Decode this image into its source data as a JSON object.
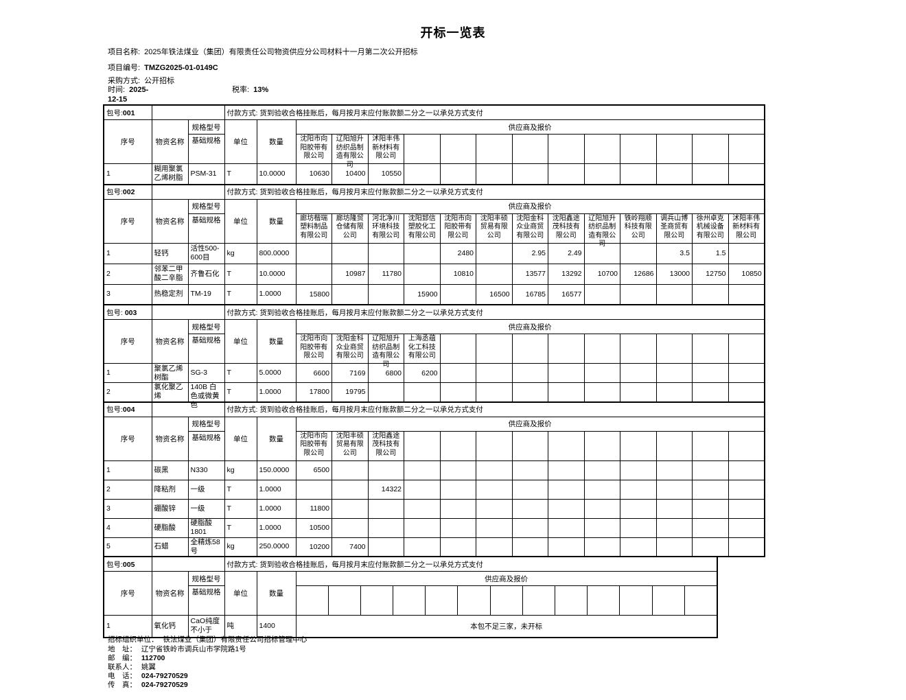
{
  "title": "开标一览表",
  "meta": {
    "project_name_label": "项目名称:",
    "project_name": "2025年铁法煤业（集团）有限责任公司物资供应分公司材料十一月第二次公开招标",
    "project_no_label": "项目编号:",
    "project_no": "TMZG2025-01-0149C",
    "method_label": "采购方式:",
    "method": "公开招标",
    "time_label": "时间:",
    "time_line1": "2025-",
    "time_line2": "12-15",
    "tax_label": "税率:",
    "tax_value": "13%"
  },
  "payment_terms": "付款方式: 货到验收合格挂账后，每月按月末应付账款额二分之一以承兑方式支付",
  "table_headers": {
    "seq": "序号",
    "name": "物资名称",
    "spec_model": "规格型号",
    "base_spec": "基础规格",
    "unit": "单位",
    "qty": "数量",
    "suppliers_quotes": "供应商及报价"
  },
  "sections": [
    {
      "pkg_label": "包号:",
      "pkg_no": "001",
      "suppliers": [
        "沈阳市向阳胶带有限公司",
        "辽阳旭升纺织品制造有限公司",
        "沭阳丰伟新材料有限公司"
      ],
      "rows": [
        {
          "seq": "1",
          "name": "糊用聚氯乙烯树脂",
          "spec": "PSM-31",
          "unit": "T",
          "qty": "10.0000",
          "quotes": [
            "10630",
            "10400",
            "10550"
          ]
        }
      ]
    },
    {
      "pkg_label": "包号:",
      "pkg_no": "002",
      "suppliers": [
        "廊坊楷瑞塑料制品有限公司",
        "廊坊隆贸仓储有限公司",
        "河北净川环境科技有限公司",
        "沈阳郅信塑胶化工有限公司",
        "沈阳市向阳胶带有限公司",
        "沈阳丰硕贸易有限公司",
        "沈阳金科众业商贸有限公司",
        "沈阳鑫途茂科技有限公司",
        "辽阳旭升纺织品制造有限公司",
        "铁岭翔顺科技有限公司",
        "调兵山博圣商贸有限公司",
        "徐州卓克机械设备有限公司",
        "沭阳丰伟新材料有限公司"
      ],
      "rows": [
        {
          "seq": "1",
          "name": "轻钙",
          "spec": "活性500-600目",
          "unit": "kg",
          "qty": "800.0000",
          "quotes": [
            "",
            "",
            "",
            "",
            "2480",
            "",
            "2.95",
            "2.49",
            "",
            "",
            "3.5",
            "1.5",
            ""
          ]
        },
        {
          "seq": "2",
          "name": "邻苯二甲酸二辛脂",
          "spec": "齐鲁石化",
          "unit": "T",
          "qty": "10.0000",
          "quotes": [
            "",
            "10987",
            "11780",
            "",
            "10810",
            "",
            "13577",
            "13292",
            "10700",
            "12686",
            "13000",
            "12750",
            "10850"
          ]
        },
        {
          "seq": "3",
          "name": "热稳定剂",
          "spec": "TM-19",
          "unit": "T",
          "qty": "1.0000",
          "quotes": [
            "15800",
            "",
            "",
            "15900",
            "",
            "16500",
            "16785",
            "16577",
            "",
            "",
            "",
            "",
            ""
          ]
        }
      ]
    },
    {
      "pkg_label": "包号: ",
      "pkg_no": "003",
      "suppliers": [
        "沈阳市向阳胶带有限公司",
        "沈阳金科众业商贸有限公司",
        "辽阳旭升纺织品制造有限公司",
        "上海丞蕴化工科技有限公司"
      ],
      "rows": [
        {
          "seq": "1",
          "name": "聚氯乙烯树酯",
          "spec": "SG-3",
          "unit": "T",
          "qty": "5.0000",
          "quotes": [
            "6600",
            "7169",
            "6800",
            "6200"
          ]
        },
        {
          "seq": "2",
          "name": "氯化聚乙烯",
          "spec": "140B 白色或微黄色",
          "unit": "T",
          "qty": "1.0000",
          "quotes": [
            "17800",
            "19795",
            "",
            ""
          ]
        }
      ]
    },
    {
      "pkg_label": "包号:",
      "pkg_no": "004",
      "suppliers": [
        "沈阳市向阳胶带有限公司",
        "沈阳丰硕贸易有限公司",
        "沈阳鑫途茂科技有限公司"
      ],
      "rows": [
        {
          "seq": "1",
          "name": "碳黑",
          "spec": "N330",
          "unit": "kg",
          "qty": "150.0000",
          "quotes": [
            "6500",
            "",
            ""
          ]
        },
        {
          "seq": "2",
          "name": "降粘剂",
          "spec": "一级",
          "unit": "T",
          "qty": "1.0000",
          "quotes": [
            "",
            "",
            "14322"
          ]
        },
        {
          "seq": "3",
          "name": "硼酸锌",
          "spec": "一级",
          "unit": "T",
          "qty": "1.0000",
          "quotes": [
            "11800",
            "",
            ""
          ]
        },
        {
          "seq": "4",
          "name": "硬脂酸",
          "spec": "硬脂酸1801",
          "unit": "T",
          "qty": "1.0000",
          "quotes": [
            "10500",
            "",
            ""
          ]
        },
        {
          "seq": "5",
          "name": "石蜡",
          "spec": "全精炼58号",
          "unit": "kg",
          "qty": "250.0000",
          "quotes": [
            "10200",
            "7400",
            ""
          ]
        }
      ]
    },
    {
      "pkg_label": "包号:",
      "pkg_no": "005",
      "suppliers": [],
      "rows": [
        {
          "seq": "1",
          "name": "氧化钙",
          "spec": "CaO纯度不小于",
          "unit": "吨",
          "qty": "1400",
          "note": "本包不足三家，未开标"
        }
      ]
    }
  ],
  "footer": {
    "org_label": "招标组织单位：",
    "org": "铁法煤业（集团）有限责任公司招标管理中心",
    "addr_label": "地　址：",
    "addr": "辽宁省铁岭市调兵山市学院路1号",
    "zip_label": "邮　编：",
    "zip": "112700",
    "contact_label": "联系人：",
    "contact": "姚翼",
    "tel_label": "电　话：",
    "tel": "024-79270529",
    "fax_label": "传　真：",
    "fax": "024-79270529"
  }
}
